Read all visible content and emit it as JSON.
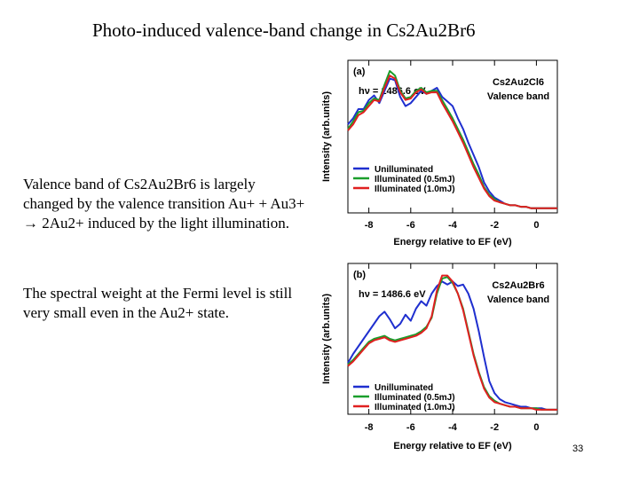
{
  "slide": {
    "title": "Photo-induced valence-band change in Cs2Au2Br6",
    "paragraph1": "Valence band of Cs2Au2Br6 is largely changed by the valence transition Au+ + Au3+ → 2Au2+ induced by the light illumination.",
    "paragraph2": "The spectral weight at the Fermi level is still very small even in the Au2+ state.",
    "slide_number": "33"
  },
  "chart_data": [
    {
      "type": "line",
      "panel_label": "(a)",
      "photon_energy": "hν = 1486.6 eV",
      "sample": "Cs2Au2Cl6",
      "band_label": "Valence band",
      "xlabel": "Energy relative to EF (eV)",
      "ylabel": "Intensity (arb.units)",
      "xlim": [
        -9.0,
        1.0
      ],
      "ylim": [
        0,
        1.0
      ],
      "xticks": [
        -8,
        -6,
        -4,
        -2,
        0
      ],
      "grid": false,
      "legend_position": "bottom-center",
      "x": [
        -9.0,
        -8.75,
        -8.5,
        -8.25,
        -8.0,
        -7.75,
        -7.5,
        -7.25,
        -7.0,
        -6.75,
        -6.5,
        -6.25,
        -6.0,
        -5.75,
        -5.5,
        -5.25,
        -5.0,
        -4.75,
        -4.5,
        -4.25,
        -4.0,
        -3.75,
        -3.5,
        -3.25,
        -3.0,
        -2.75,
        -2.5,
        -2.25,
        -2.0,
        -1.75,
        -1.5,
        -1.25,
        -1.0,
        -0.75,
        -0.5,
        -0.25,
        0.0,
        0.25,
        0.5,
        0.75,
        1.0
      ],
      "series": [
        {
          "name": "Unilluminated",
          "color": "#1f2fcf",
          "values": [
            0.58,
            0.62,
            0.68,
            0.68,
            0.74,
            0.77,
            0.72,
            0.8,
            0.88,
            0.87,
            0.76,
            0.7,
            0.72,
            0.76,
            0.8,
            0.78,
            0.8,
            0.82,
            0.76,
            0.73,
            0.7,
            0.62,
            0.55,
            0.46,
            0.38,
            0.3,
            0.2,
            0.14,
            0.1,
            0.08,
            0.06,
            0.05,
            0.05,
            0.04,
            0.04,
            0.03,
            0.03,
            0.03,
            0.03,
            0.03,
            0.03
          ]
        },
        {
          "name": "Illuminated (0.5mJ)",
          "color": "#1a9e2c",
          "values": [
            0.55,
            0.6,
            0.66,
            0.67,
            0.72,
            0.75,
            0.74,
            0.84,
            0.93,
            0.9,
            0.8,
            0.75,
            0.76,
            0.8,
            0.82,
            0.79,
            0.8,
            0.8,
            0.74,
            0.68,
            0.62,
            0.55,
            0.48,
            0.4,
            0.32,
            0.25,
            0.17,
            0.12,
            0.09,
            0.07,
            0.06,
            0.05,
            0.05,
            0.04,
            0.04,
            0.03,
            0.03,
            0.03,
            0.03,
            0.03,
            0.03
          ]
        },
        {
          "name": "Illuminated (1.0mJ)",
          "color": "#e02020",
          "values": [
            0.54,
            0.58,
            0.64,
            0.66,
            0.7,
            0.74,
            0.73,
            0.82,
            0.9,
            0.88,
            0.79,
            0.74,
            0.75,
            0.79,
            0.81,
            0.78,
            0.79,
            0.79,
            0.72,
            0.66,
            0.6,
            0.53,
            0.46,
            0.38,
            0.3,
            0.23,
            0.16,
            0.11,
            0.08,
            0.07,
            0.06,
            0.05,
            0.05,
            0.04,
            0.04,
            0.03,
            0.03,
            0.03,
            0.03,
            0.03,
            0.03
          ]
        }
      ]
    },
    {
      "type": "line",
      "panel_label": "(b)",
      "photon_energy": "hν = 1486.6 eV",
      "sample": "Cs2Au2Br6",
      "band_label": "Valence band",
      "xlabel": "Energy relative to EF (eV)",
      "ylabel": "Intensity (arb.units)",
      "xlim": [
        -9.0,
        1.0
      ],
      "ylim": [
        0,
        1.0
      ],
      "xticks": [
        -8,
        -6,
        -4,
        -2,
        0
      ],
      "grid": false,
      "legend_position": "bottom-center",
      "x": [
        -9.0,
        -8.75,
        -8.5,
        -8.25,
        -8.0,
        -7.75,
        -7.5,
        -7.25,
        -7.0,
        -6.75,
        -6.5,
        -6.25,
        -6.0,
        -5.75,
        -5.5,
        -5.25,
        -5.0,
        -4.75,
        -4.5,
        -4.25,
        -4.0,
        -3.75,
        -3.5,
        -3.25,
        -3.0,
        -2.75,
        -2.5,
        -2.25,
        -2.0,
        -1.75,
        -1.5,
        -1.25,
        -1.0,
        -0.75,
        -0.5,
        -0.25,
        0.0,
        0.25,
        0.5,
        0.75,
        1.0
      ],
      "series": [
        {
          "name": "Unilluminated",
          "color": "#1f2fcf",
          "values": [
            0.34,
            0.4,
            0.45,
            0.5,
            0.55,
            0.6,
            0.65,
            0.68,
            0.63,
            0.57,
            0.6,
            0.66,
            0.62,
            0.7,
            0.75,
            0.72,
            0.8,
            0.85,
            0.88,
            0.86,
            0.88,
            0.85,
            0.86,
            0.8,
            0.7,
            0.55,
            0.38,
            0.22,
            0.14,
            0.1,
            0.08,
            0.07,
            0.06,
            0.05,
            0.05,
            0.04,
            0.04,
            0.04,
            0.03,
            0.03,
            0.03
          ]
        },
        {
          "name": "Illuminated (0.5mJ)",
          "color": "#1a9e2c",
          "values": [
            0.33,
            0.36,
            0.4,
            0.44,
            0.48,
            0.5,
            0.51,
            0.52,
            0.5,
            0.49,
            0.5,
            0.51,
            0.52,
            0.53,
            0.55,
            0.58,
            0.64,
            0.8,
            0.9,
            0.91,
            0.87,
            0.8,
            0.7,
            0.55,
            0.4,
            0.28,
            0.18,
            0.12,
            0.09,
            0.07,
            0.06,
            0.05,
            0.05,
            0.04,
            0.04,
            0.04,
            0.04,
            0.03,
            0.03,
            0.03,
            0.03
          ]
        },
        {
          "name": "Illuminated (1.0mJ)",
          "color": "#e02020",
          "values": [
            0.32,
            0.35,
            0.39,
            0.43,
            0.47,
            0.49,
            0.5,
            0.51,
            0.49,
            0.48,
            0.49,
            0.5,
            0.51,
            0.52,
            0.54,
            0.57,
            0.65,
            0.82,
            0.92,
            0.92,
            0.88,
            0.8,
            0.69,
            0.54,
            0.39,
            0.27,
            0.17,
            0.11,
            0.08,
            0.07,
            0.06,
            0.05,
            0.05,
            0.04,
            0.04,
            0.04,
            0.03,
            0.03,
            0.03,
            0.03,
            0.03
          ]
        }
      ]
    }
  ]
}
